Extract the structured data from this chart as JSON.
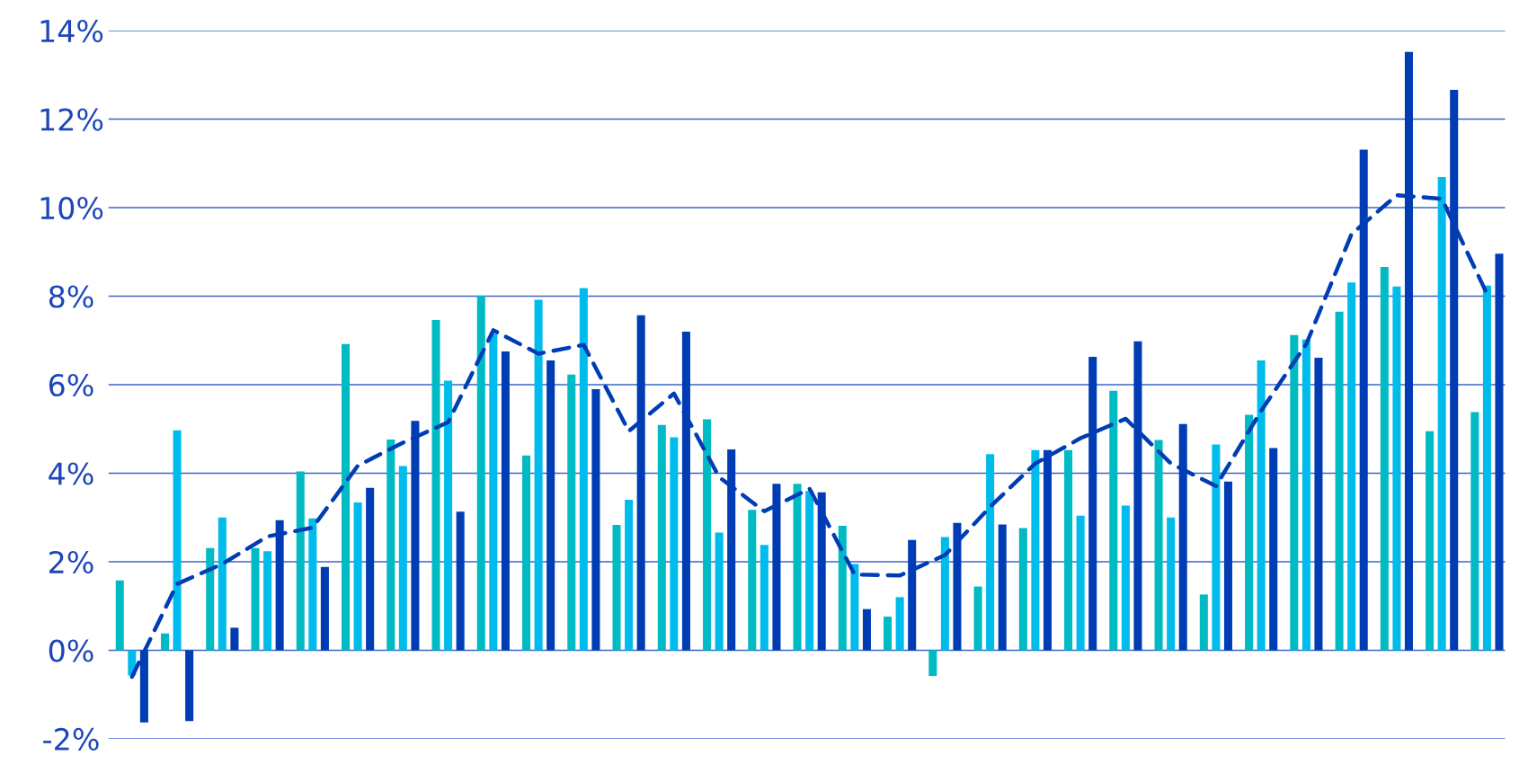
{
  "chart_data": {
    "type": "bar",
    "categories": [
      null,
      null,
      null,
      null,
      null,
      null,
      null,
      null,
      null,
      null,
      null,
      null,
      null,
      null,
      null,
      null,
      null,
      null,
      null,
      null,
      null,
      null,
      null,
      null,
      null,
      null,
      null,
      null,
      null,
      null,
      null
    ],
    "series": [
      {
        "color": "#00bbc4",
        "values": [
          1.58,
          0.38,
          2.31,
          2.31,
          4.04,
          6.92,
          4.76,
          7.46,
          8.01,
          4.4,
          6.23,
          2.83,
          5.09,
          5.22,
          3.17,
          3.76,
          2.81,
          0.76,
          -0.58,
          1.44,
          2.76,
          4.52,
          5.86,
          4.75,
          1.26,
          5.32,
          7.12,
          7.65,
          8.66,
          4.95,
          5.38
        ]
      },
      {
        "color": "#00bcec",
        "values": [
          -0.57,
          4.97,
          3.0,
          2.24,
          2.98,
          3.34,
          4.16,
          6.09,
          7.15,
          7.92,
          8.18,
          3.4,
          4.81,
          2.66,
          2.38,
          3.6,
          1.95,
          1.2,
          2.56,
          4.43,
          4.52,
          3.04,
          3.27,
          3.0,
          4.65,
          6.55,
          7.02,
          8.31,
          8.22,
          10.69,
          8.24
        ]
      },
      {
        "color": "#003db5",
        "values": [
          -1.63,
          -1.6,
          0.51,
          2.94,
          1.88,
          3.67,
          5.18,
          3.13,
          6.75,
          6.55,
          5.9,
          7.57,
          7.2,
          4.54,
          3.76,
          3.57,
          0.93,
          2.49,
          2.88,
          2.84,
          4.52,
          6.63,
          6.98,
          5.11,
          3.81,
          4.57,
          6.61,
          11.31,
          13.52,
          12.66,
          8.96
        ]
      },
      {
        "type": "line",
        "color": "#003db5",
        "line_style": "dashed",
        "marker": "none",
        "values": [
          -0.6,
          1.5,
          1.95,
          2.57,
          2.77,
          4.17,
          4.69,
          5.15,
          7.23,
          6.7,
          6.9,
          4.95,
          5.8,
          3.91,
          3.14,
          3.65,
          1.71,
          1.69,
          2.15,
          3.24,
          4.22,
          4.79,
          5.23,
          4.22,
          3.71,
          5.41,
          6.92,
          9.4,
          10.28,
          10.2,
          8.05
        ]
      }
    ],
    "ylim": [
      -2,
      14
    ],
    "yticks": [
      {
        "value": -2,
        "label": "-2%"
      },
      {
        "value": 0,
        "label": "0%"
      },
      {
        "value": 2,
        "label": "2%"
      },
      {
        "value": 4,
        "label": "4%"
      },
      {
        "value": 6,
        "label": "6%"
      },
      {
        "value": 8,
        "label": "8%"
      },
      {
        "value": 10,
        "label": "10%"
      },
      {
        "value": 12,
        "label": "12%"
      },
      {
        "value": 14,
        "label": "14%"
      }
    ],
    "grid": "y",
    "legend": false,
    "tick_labels": "y"
  }
}
